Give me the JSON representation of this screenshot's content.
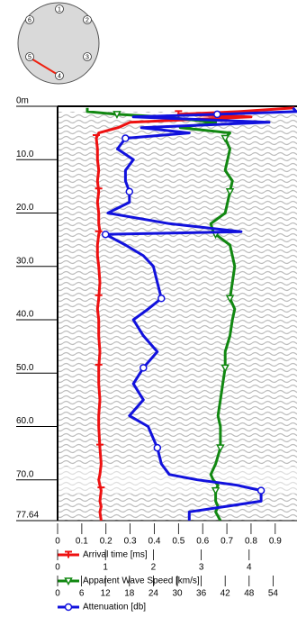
{
  "tubes": [
    "1",
    "2",
    "3",
    "4",
    "5",
    "6"
  ],
  "chart_data": {
    "type": "line",
    "y": [
      0.3,
      1,
      1.5,
      2,
      3,
      4,
      5,
      6,
      8,
      10,
      12,
      14,
      16,
      18,
      20,
      22,
      23.5,
      24,
      26,
      28,
      30,
      33,
      36,
      38,
      40,
      43,
      46,
      49,
      52,
      55,
      58,
      60,
      64,
      67,
      69,
      70,
      71,
      72,
      74,
      75,
      76,
      77.64
    ],
    "ylim": [
      0,
      77.64
    ],
    "yticks": [
      {
        "value": 0,
        "label": "0m"
      },
      {
        "value": 10,
        "label": "10.0"
      },
      {
        "value": 20,
        "label": "20.0"
      },
      {
        "value": 30,
        "label": "30.0"
      },
      {
        "value": 40,
        "label": "40.0"
      },
      {
        "value": 50,
        "label": "50.0"
      },
      {
        "value": 60,
        "label": "60.0"
      },
      {
        "value": 70,
        "label": "70.0"
      },
      77.64
    ],
    "series": [
      {
        "name": "Arrival time [ms]",
        "color": "#ee1111",
        "marker": "T",
        "xlim": [
          0,
          0.99
        ],
        "xticks": [
          0,
          0.1,
          0.2,
          0.3,
          0.4,
          0.5,
          0.6,
          0.7,
          0.8,
          0.9
        ],
        "values": [
          0.98,
          0.75,
          0.5,
          0.8,
          0.3,
          0.25,
          0.17,
          0.16,
          0.165,
          0.165,
          0.17,
          0.165,
          0.17,
          0.165,
          0.17,
          0.17,
          0.175,
          0.17,
          0.165,
          0.165,
          0.17,
          0.175,
          0.17,
          0.165,
          0.17,
          0.17,
          0.175,
          0.17,
          0.17,
          0.175,
          0.17,
          0.17,
          0.175,
          0.18,
          0.175,
          0.17,
          0.175,
          0.18,
          0.175,
          0.18,
          0.175,
          0.18
        ]
      },
      {
        "name": "Apparent Wave Speed [km/s]",
        "color": "#118811",
        "marker": "triangle",
        "xlim": [
          0,
          5
        ],
        "xticks": [
          0,
          1,
          2,
          3,
          4
        ],
        "values": [
          0.62,
          0.62,
          1.24,
          2.2,
          3.3,
          2.56,
          3.6,
          3.5,
          3.6,
          3.55,
          3.5,
          3.65,
          3.6,
          3.55,
          3.5,
          3.2,
          3.25,
          3.3,
          3.6,
          3.65,
          3.7,
          3.65,
          3.6,
          3.7,
          3.65,
          3.6,
          3.5,
          3.5,
          3.45,
          3.4,
          3.35,
          3.4,
          3.4,
          3.3,
          3.2,
          3.25,
          3.35,
          3.3,
          3.3,
          3.35,
          3.3,
          3.4
        ]
      },
      {
        "name": "Attenuation [db]",
        "color": "#1111dd",
        "marker": "circle",
        "xlim": [
          0,
          60
        ],
        "xticks": [
          0,
          6,
          12,
          18,
          24,
          30,
          36,
          42,
          48,
          54
        ],
        "values": [
          59,
          59.8,
          40,
          19,
          53,
          21,
          33,
          17,
          15,
          19,
          17,
          17,
          18,
          18,
          12.6,
          28,
          46,
          12,
          17,
          21.5,
          24,
          25,
          26,
          22.7,
          19,
          21.5,
          25,
          21.5,
          19,
          21.5,
          18,
          22.7,
          25,
          26,
          28,
          35,
          45,
          51,
          51,
          42,
          33,
          33
        ]
      }
    ]
  }
}
